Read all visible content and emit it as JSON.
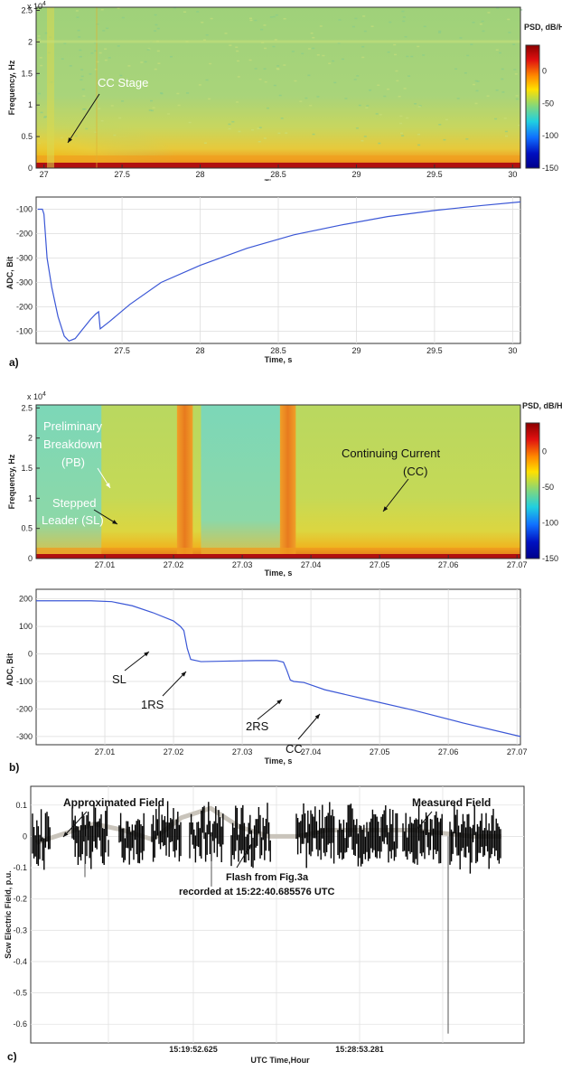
{
  "panels": [
    {
      "id": "a-spec",
      "type": "heatmap",
      "title": "",
      "xlabel": "Time, s",
      "ylabel": "Frequency, Hz",
      "exponent": "x 10^4",
      "xticks": [
        "27",
        "27.5",
        "28",
        "28.5",
        "29",
        "29.5",
        "30"
      ],
      "xlim": [
        26.95,
        30.05
      ],
      "yticks": [
        "0",
        "0.5",
        "1",
        "1.5",
        "2",
        "2.5"
      ],
      "ylim": [
        0,
        2.55
      ],
      "colorbar": {
        "label": "PSD, dB/Hz",
        "ticks": [
          "0",
          "-50",
          "-100",
          "-150"
        ],
        "range": [
          -150,
          40
        ]
      },
      "annotations": [
        {
          "text": "CC Stage"
        }
      ]
    },
    {
      "id": "a-adc",
      "type": "line",
      "xlabel": "Time, s",
      "ylabel": "ADC, Bit",
      "xticks": [
        "27.5",
        "28",
        "28.5",
        "29",
        "29.5",
        "30"
      ],
      "xlim": [
        26.95,
        30.05
      ],
      "yticks": [
        "-100",
        "-200",
        "-300",
        "-300",
        "-200",
        "-100"
      ],
      "ylim": [
        -650,
        -50
      ],
      "series": [
        {
          "x": [
            26.96,
            26.99,
            27.0,
            27.02,
            27.05,
            27.09,
            27.13,
            27.16,
            27.2,
            27.25,
            27.3,
            27.33,
            27.35,
            27.36,
            27.42,
            27.55,
            27.75,
            28.0,
            28.3,
            28.6,
            28.9,
            29.2,
            29.5,
            29.8,
            30.05
          ],
          "y": [
            -100,
            -100,
            -120,
            -300,
            -420,
            -540,
            -620,
            -640,
            -630,
            -590,
            -550,
            -530,
            -520,
            -590,
            -560,
            -490,
            -400,
            -330,
            -260,
            -205,
            -165,
            -130,
            -105,
            -85,
            -70
          ]
        }
      ],
      "panel_label": "a)"
    },
    {
      "id": "b-spec",
      "type": "heatmap",
      "xlabel": "Time, s",
      "ylabel": "Frequency, Hz",
      "exponent": "x 10^4",
      "xticks": [
        "27.01",
        "27.02",
        "27.03",
        "27.04",
        "27.05",
        "27.06",
        "27.07"
      ],
      "xlim": [
        27.0,
        27.0705
      ],
      "yticks": [
        "0",
        "0.5",
        "1",
        "1.5",
        "2",
        "2.5"
      ],
      "ylim": [
        0,
        2.55
      ],
      "colorbar": {
        "label": "PSD, dB/Hz",
        "ticks": [
          "0",
          "-50",
          "-100",
          "-150"
        ],
        "range": [
          -150,
          40
        ]
      },
      "annotations": [
        {
          "text": "Preliminary"
        },
        {
          "text": "Breakdown"
        },
        {
          "text": "(PB)"
        },
        {
          "text": "Stepped"
        },
        {
          "text": "Leader (SL)"
        },
        {
          "text": "Continuing Current"
        },
        {
          "text": "(CC)"
        }
      ]
    },
    {
      "id": "b-adc",
      "type": "line",
      "xlabel": "Time, s",
      "ylabel": "ADC, Bit",
      "xticks": [
        "27.01",
        "27.02",
        "27.03",
        "27.04",
        "27.05",
        "27.06",
        "27.07"
      ],
      "xlim": [
        27.0,
        27.0705
      ],
      "yticks": [
        "200",
        "100",
        "0",
        "-100",
        "-200",
        "-300"
      ],
      "ylim": [
        -330,
        235
      ],
      "series": [
        {
          "x": [
            27.0,
            27.008,
            27.011,
            27.014,
            27.017,
            27.02,
            27.021,
            27.0215,
            27.022,
            27.0225,
            27.024,
            27.028,
            27.032,
            27.035,
            27.036,
            27.0365,
            27.037,
            27.0375,
            27.039,
            27.042,
            27.048,
            27.055,
            27.062,
            27.0705
          ],
          "y": [
            193,
            193,
            190,
            175,
            150,
            120,
            100,
            85,
            20,
            -20,
            -28,
            -26,
            -24,
            -24,
            -30,
            -60,
            -95,
            -100,
            -104,
            -130,
            -165,
            -205,
            -250,
            -300
          ]
        }
      ],
      "annotations": [
        {
          "text": "SL"
        },
        {
          "text": "1RS"
        },
        {
          "text": "2RS"
        },
        {
          "text": "CC"
        }
      ],
      "panel_label": "b)"
    },
    {
      "id": "c-field",
      "type": "line",
      "xlabel": "UTC Time,Hour",
      "ylabel": "Scw Electric Field, p.u.",
      "xticks": [
        "15:19:52.625",
        "15:28:53.281"
      ],
      "yticks": [
        "0.1",
        "0",
        "-0.1",
        "-0.2",
        "-0.3",
        "-0.4",
        "-0.5",
        "-0.6"
      ],
      "ylim": [
        -0.66,
        0.16
      ],
      "approx_series": {
        "name": "Approximated Field",
        "y": [
          -0.02,
          0.01,
          0.04,
          0.02,
          -0.01,
          0.06,
          0.09,
          0.03,
          0.0,
          0.0,
          0.02,
          0.02,
          0.02,
          0.02,
          0.01,
          0.0,
          0.0
        ]
      },
      "annotations": [
        {
          "text": "Approximated Field"
        },
        {
          "text": "Measured Field"
        },
        {
          "text": "Flash from Fig.3a"
        },
        {
          "text": "recorded at 15:22:40.685576 UTC"
        }
      ],
      "panel_label": "c)"
    }
  ]
}
